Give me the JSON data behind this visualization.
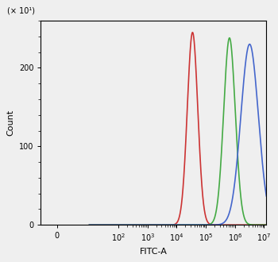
{
  "title": "",
  "xlabel": "FITC-A",
  "ylabel": "Count",
  "y_scale_label": "(× 10¹)",
  "ylim": [
    0,
    2600
  ],
  "yticks": [
    0,
    1000,
    2000
  ],
  "ytick_labels": [
    "0",
    "100",
    "200"
  ],
  "red_peak": 35000.0,
  "red_sigma": 0.18,
  "red_height": 2450,
  "green_peak": 650000.0,
  "green_sigma": 0.2,
  "green_height": 2380,
  "blue_peak": 3200000.0,
  "blue_sigma": 0.3,
  "blue_height": 2300,
  "red_color": "#cc3333",
  "green_color": "#44aa44",
  "blue_color": "#4466cc",
  "background_color": "#efefef",
  "linewidth": 1.2,
  "linthresh": 10,
  "xlim": [
    -5,
    12000000.0
  ],
  "xticks": [
    0,
    100,
    1000,
    10000,
    100000,
    1000000,
    10000000
  ],
  "xtick_labels": [
    "0",
    "10$^2$",
    "10$^3$",
    "10$^4$",
    "10$^5$",
    "10$^6$",
    "10$^7$"
  ]
}
